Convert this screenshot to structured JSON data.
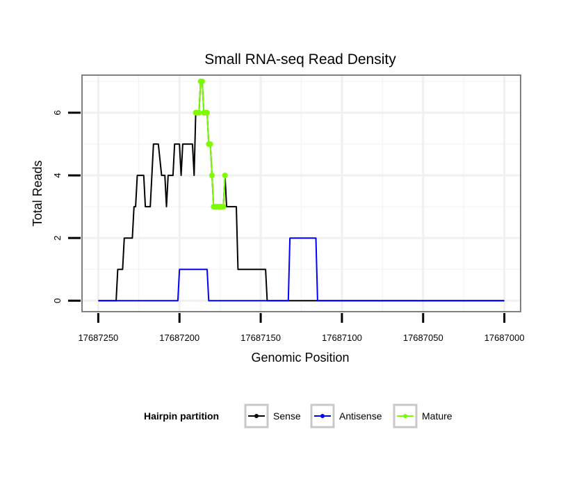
{
  "chart_data": {
    "type": "line",
    "title": "Small RNA-seq Read Density",
    "xlabel": "Genomic Position",
    "ylabel": "Total Reads",
    "x_reversed": true,
    "xlim": [
      17687260,
      17686990
    ],
    "ylim": [
      -0.35,
      7.2
    ],
    "x_ticks": [
      17687250,
      17687200,
      17687150,
      17687100,
      17687050,
      17687000
    ],
    "x_tick_labels": [
      "17687250",
      "17687200",
      "17687150",
      "17687100",
      "17687050",
      "17687000"
    ],
    "y_ticks": [
      0,
      2,
      4,
      6
    ],
    "y_tick_labels": [
      "0",
      "2",
      "4",
      "6"
    ],
    "grid": true,
    "legend": {
      "title": "Hairpin partition",
      "position": "bottom",
      "entries": [
        "Sense",
        "Antisense",
        "Mature"
      ]
    },
    "series": [
      {
        "name": "Sense",
        "color": "#000000",
        "markers": false,
        "points": [
          [
            17687250,
            0
          ],
          [
            17687239,
            0
          ],
          [
            17687238,
            1
          ],
          [
            17687235,
            1
          ],
          [
            17687234,
            2
          ],
          [
            17687229,
            2
          ],
          [
            17687228,
            3
          ],
          [
            17687227,
            3
          ],
          [
            17687226,
            4
          ],
          [
            17687222,
            4
          ],
          [
            17687221,
            3
          ],
          [
            17687218,
            3
          ],
          [
            17687216,
            5
          ],
          [
            17687213,
            5
          ],
          [
            17687211,
            4
          ],
          [
            17687209,
            4
          ],
          [
            17687208,
            3
          ],
          [
            17687207,
            4
          ],
          [
            17687204,
            4
          ],
          [
            17687203,
            5
          ],
          [
            17687200,
            5
          ],
          [
            17687199,
            4
          ],
          [
            17687198,
            5
          ],
          [
            17687192,
            5
          ],
          [
            17687191,
            4
          ],
          [
            17687190,
            6
          ],
          [
            17687188,
            6
          ],
          [
            17687187,
            7
          ],
          [
            17687186,
            7
          ],
          [
            17687185,
            6
          ],
          [
            17687183,
            6
          ],
          [
            17687182,
            5
          ],
          [
            17687181,
            5
          ],
          [
            17687180,
            4
          ],
          [
            17687179,
            3
          ],
          [
            17687173,
            3
          ],
          [
            17687172,
            4
          ],
          [
            17687171,
            3
          ],
          [
            17687165,
            3
          ],
          [
            17687164,
            1
          ],
          [
            17687147,
            1
          ],
          [
            17687146,
            0
          ],
          [
            17687000,
            0
          ]
        ]
      },
      {
        "name": "Antisense",
        "color": "#0000ff",
        "markers": false,
        "points": [
          [
            17687250,
            0
          ],
          [
            17687201,
            0
          ],
          [
            17687200,
            1
          ],
          [
            17687183,
            1
          ],
          [
            17687182,
            0
          ],
          [
            17687147,
            0
          ],
          [
            17687146,
            0
          ],
          [
            17687133,
            0
          ],
          [
            17687132,
            2
          ],
          [
            17687116,
            2
          ],
          [
            17687115,
            0
          ],
          [
            17687000,
            0
          ]
        ]
      },
      {
        "name": "Mature",
        "color": "#7cfc00",
        "markers": true,
        "points": [
          [
            17687190,
            6
          ],
          [
            17687189,
            6
          ],
          [
            17687188,
            6
          ],
          [
            17687187,
            7
          ],
          [
            17687186,
            7
          ],
          [
            17687185,
            6
          ],
          [
            17687184,
            6
          ],
          [
            17687183,
            6
          ],
          [
            17687182,
            5
          ],
          [
            17687181,
            5
          ],
          [
            17687180,
            4
          ],
          [
            17687179,
            3
          ],
          [
            17687178,
            3
          ],
          [
            17687177,
            3
          ],
          [
            17687176,
            3
          ],
          [
            17687175,
            3
          ],
          [
            17687174,
            3
          ],
          [
            17687173,
            3
          ],
          [
            17687172,
            4
          ]
        ]
      }
    ]
  }
}
